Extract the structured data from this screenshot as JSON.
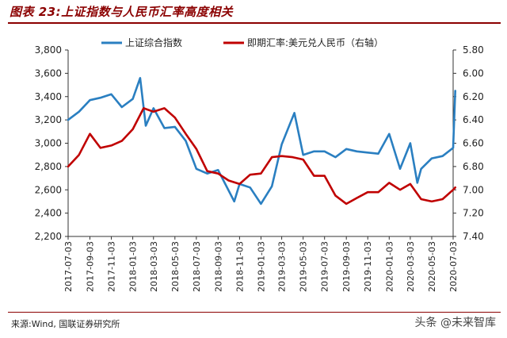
{
  "header": {
    "title": "图表 23:上证指数与人民币汇率高度相关"
  },
  "footer": {
    "source": "来源:Wind, 国联证券研究所",
    "watermark": "头条 @未来智库"
  },
  "colors": {
    "series1": "#2a7fc1",
    "series2": "#c00000",
    "title": "#8b0000",
    "axis": "#333333"
  },
  "chart_data": {
    "type": "line",
    "title": "",
    "xlabel": "",
    "ylabel": "",
    "x_ticks": [
      "2017-07-03",
      "2017-09-03",
      "2017-11-03",
      "2018-01-03",
      "2018-03-03",
      "2018-05-03",
      "2018-07-03",
      "2018-09-03",
      "2018-11-03",
      "2019-01-03",
      "2019-03-03",
      "2019-05-03",
      "2019-07-03",
      "2019-09-03",
      "2019-11-03",
      "2020-01-03",
      "2020-03-03",
      "2020-05-03",
      "2020-07-03"
    ],
    "y_left": {
      "ylim": [
        2200,
        3800
      ],
      "ticks": [
        "2,200",
        "2,400",
        "2,600",
        "2,800",
        "3,000",
        "3,200",
        "3,400",
        "3,600",
        "3,800"
      ],
      "tick_values": [
        2200,
        2400,
        2600,
        2800,
        3000,
        3200,
        3400,
        3600,
        3800
      ]
    },
    "y_right": {
      "ylim": [
        5.8,
        7.4
      ],
      "inverted": true,
      "ticks": [
        "5.80",
        "6.00",
        "6.20",
        "6.40",
        "6.60",
        "6.80",
        "7.00",
        "7.20",
        "7.40"
      ],
      "tick_values": [
        5.8,
        6.0,
        6.2,
        6.4,
        6.6,
        6.8,
        7.0,
        7.2,
        7.4
      ]
    },
    "legend_position": "top",
    "series": [
      {
        "name": "上证综合指数",
        "axis": "left",
        "x": [
          "2017-07-03",
          "2017-08-03",
          "2017-09-03",
          "2017-10-03",
          "2017-11-03",
          "2017-12-03",
          "2018-01-03",
          "2018-01-24",
          "2018-02-09",
          "2018-03-03",
          "2018-04-03",
          "2018-05-03",
          "2018-06-03",
          "2018-07-03",
          "2018-08-03",
          "2018-09-03",
          "2018-10-19",
          "2018-11-03",
          "2018-12-03",
          "2019-01-03",
          "2019-02-03",
          "2019-03-03",
          "2019-04-08",
          "2019-05-03",
          "2019-06-03",
          "2019-07-03",
          "2019-08-03",
          "2019-09-03",
          "2019-10-03",
          "2019-11-03",
          "2019-12-03",
          "2020-01-03",
          "2020-02-03",
          "2020-03-03",
          "2020-03-23",
          "2020-04-03",
          "2020-05-03",
          "2020-06-03",
          "2020-07-03",
          "2020-07-09"
        ],
        "values": [
          3200,
          3270,
          3370,
          3390,
          3420,
          3310,
          3380,
          3560,
          3150,
          3300,
          3130,
          3140,
          3020,
          2780,
          2740,
          2770,
          2500,
          2650,
          2620,
          2480,
          2630,
          2990,
          3260,
          2900,
          2930,
          2930,
          2880,
          2950,
          2930,
          2920,
          2910,
          3080,
          2780,
          3000,
          2660,
          2780,
          2870,
          2890,
          2960,
          3450
        ]
      },
      {
        "name": "即期汇率:美元兑人民币（右轴）",
        "axis": "right",
        "x": [
          "2017-07-03",
          "2017-08-03",
          "2017-09-03",
          "2017-10-03",
          "2017-11-03",
          "2017-12-03",
          "2018-01-03",
          "2018-02-03",
          "2018-03-03",
          "2018-04-03",
          "2018-05-03",
          "2018-06-03",
          "2018-07-03",
          "2018-08-03",
          "2018-09-03",
          "2018-10-03",
          "2018-11-03",
          "2018-12-03",
          "2019-01-03",
          "2019-02-03",
          "2019-03-03",
          "2019-04-03",
          "2019-05-03",
          "2019-06-03",
          "2019-07-03",
          "2019-08-03",
          "2019-09-03",
          "2019-10-03",
          "2019-11-03",
          "2019-12-03",
          "2020-01-03",
          "2020-02-03",
          "2020-03-03",
          "2020-04-03",
          "2020-05-03",
          "2020-06-03",
          "2020-07-03",
          "2020-07-09"
        ],
        "values": [
          6.8,
          6.7,
          6.52,
          6.64,
          6.62,
          6.58,
          6.48,
          6.3,
          6.33,
          6.3,
          6.38,
          6.52,
          6.65,
          6.84,
          6.86,
          6.92,
          6.95,
          6.87,
          6.86,
          6.72,
          6.71,
          6.72,
          6.74,
          6.88,
          6.88,
          7.05,
          7.12,
          7.07,
          7.02,
          7.02,
          6.94,
          7.0,
          6.95,
          7.08,
          7.1,
          7.08,
          7.0,
          6.98
        ]
      }
    ]
  }
}
